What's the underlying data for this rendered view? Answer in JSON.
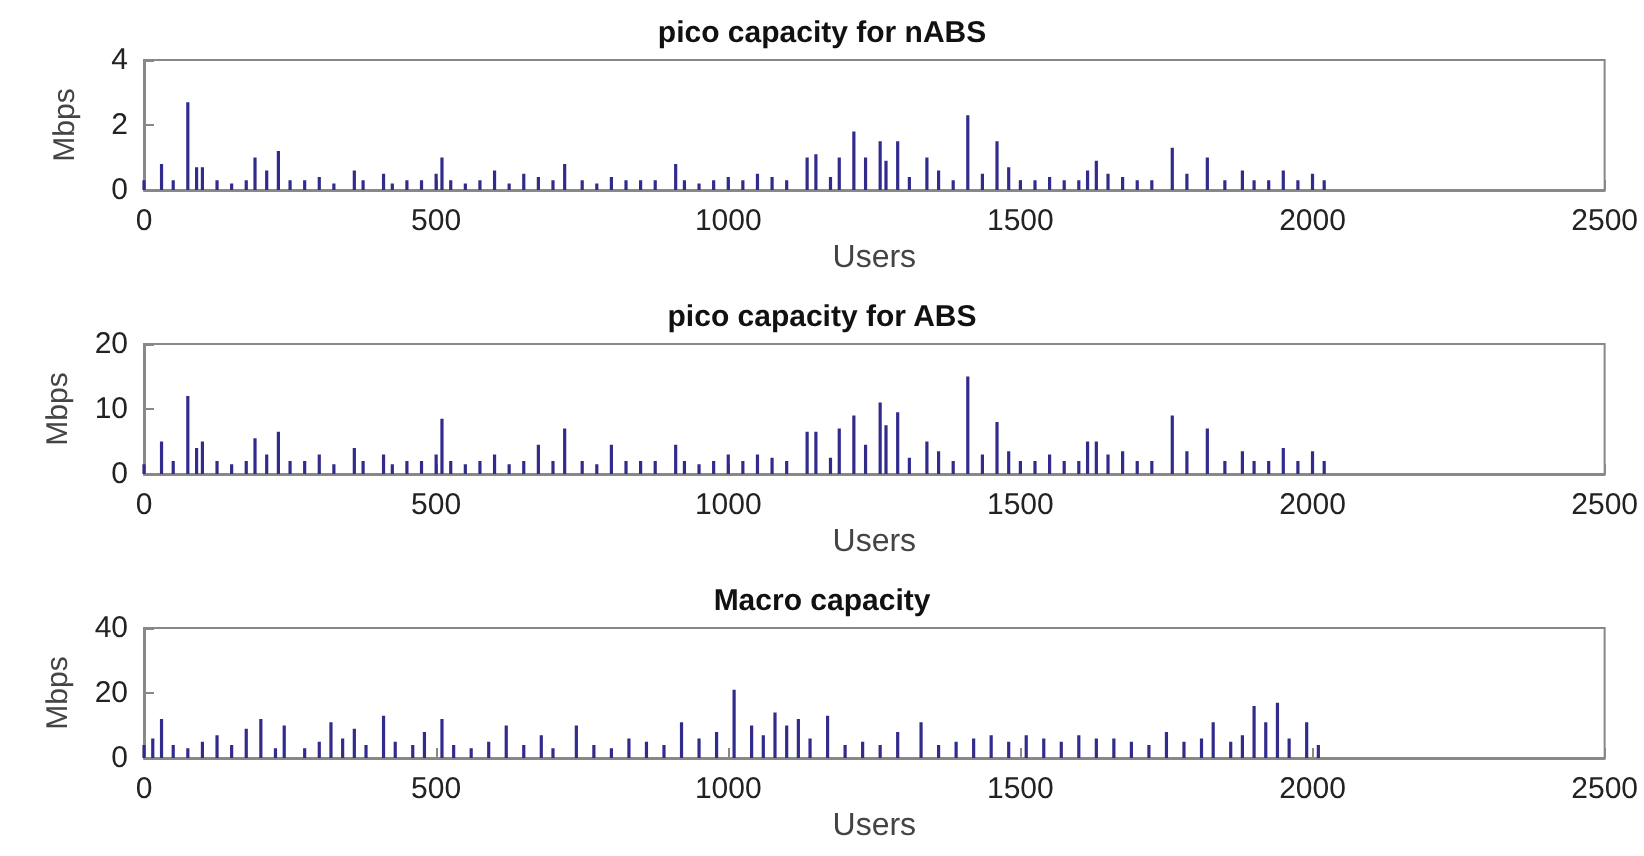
{
  "chart_data": [
    {
      "type": "bar",
      "title": "pico capacity for nABS",
      "xlabel": "Users",
      "ylabel": "Mbps",
      "xlim": [
        0,
        2500
      ],
      "xticks": [
        0,
        500,
        1000,
        1500,
        2000,
        2500
      ],
      "ylim": [
        0,
        4
      ],
      "yticks": [
        0,
        2,
        4
      ],
      "grid": false,
      "x": [
        0,
        30,
        50,
        75,
        90,
        100,
        125,
        150,
        175,
        190,
        210,
        230,
        250,
        275,
        300,
        325,
        360,
        375,
        410,
        425,
        450,
        475,
        500,
        510,
        525,
        550,
        575,
        600,
        625,
        650,
        675,
        700,
        720,
        750,
        775,
        800,
        825,
        850,
        875,
        910,
        925,
        950,
        975,
        1000,
        1025,
        1050,
        1075,
        1100,
        1135,
        1150,
        1175,
        1190,
        1215,
        1235,
        1260,
        1270,
        1290,
        1310,
        1340,
        1360,
        1385,
        1410,
        1435,
        1460,
        1480,
        1500,
        1525,
        1550,
        1575,
        1600,
        1615,
        1630,
        1650,
        1675,
        1700,
        1725,
        1760,
        1785,
        1820,
        1850,
        1880,
        1900,
        1925,
        1950,
        1975,
        2000,
        2020
      ],
      "series": [
        {
          "color": "#312c8c",
          "values": [
            0.3,
            0.8,
            0.3,
            2.7,
            0.7,
            0.7,
            0.3,
            0.2,
            0.3,
            1.0,
            0.6,
            1.2,
            0.3,
            0.3,
            0.4,
            0.2,
            0.6,
            0.3,
            0.5,
            0.2,
            0.3,
            0.3,
            0.5,
            1.0,
            0.3,
            0.2,
            0.3,
            0.6,
            0.2,
            0.5,
            0.4,
            0.3,
            0.8,
            0.3,
            0.2,
            0.4,
            0.3,
            0.3,
            0.3,
            0.8,
            0.3,
            0.2,
            0.3,
            0.4,
            0.3,
            0.5,
            0.4,
            0.3,
            1.0,
            1.1,
            0.4,
            1.0,
            1.8,
            1.0,
            1.5,
            0.9,
            1.5,
            0.4,
            1.0,
            0.6,
            0.3,
            2.3,
            0.5,
            1.5,
            0.7,
            0.3,
            0.3,
            0.4,
            0.3,
            0.3,
            0.6,
            0.9,
            0.5,
            0.4,
            0.3,
            0.3,
            1.3,
            0.5,
            1.0,
            0.3,
            0.6,
            0.3,
            0.3,
            0.6,
            0.3,
            0.5,
            0.3
          ]
        }
      ]
    },
    {
      "type": "bar",
      "title": "pico capacity for ABS",
      "xlabel": "Users",
      "ylabel": "Mbps",
      "xlim": [
        0,
        2500
      ],
      "xticks": [
        0,
        500,
        1000,
        1500,
        2000,
        2500
      ],
      "ylim": [
        0,
        20
      ],
      "yticks": [
        0,
        10,
        20
      ],
      "grid": false,
      "x": [
        0,
        30,
        50,
        75,
        90,
        100,
        125,
        150,
        175,
        190,
        210,
        230,
        250,
        275,
        300,
        325,
        360,
        375,
        410,
        425,
        450,
        475,
        500,
        510,
        525,
        550,
        575,
        600,
        625,
        650,
        675,
        700,
        720,
        750,
        775,
        800,
        825,
        850,
        875,
        910,
        925,
        950,
        975,
        1000,
        1025,
        1050,
        1075,
        1100,
        1135,
        1150,
        1175,
        1190,
        1215,
        1235,
        1260,
        1270,
        1290,
        1310,
        1340,
        1360,
        1385,
        1410,
        1435,
        1460,
        1480,
        1500,
        1525,
        1550,
        1575,
        1600,
        1615,
        1630,
        1650,
        1675,
        1700,
        1725,
        1760,
        1785,
        1820,
        1850,
        1880,
        1900,
        1925,
        1950,
        1975,
        2000,
        2020
      ],
      "series": [
        {
          "color": "#312c8c",
          "values": [
            1.5,
            5,
            2,
            12,
            4,
            5,
            2,
            1.5,
            2,
            5.5,
            3,
            6.5,
            2,
            2,
            3,
            1.5,
            4,
            2,
            3,
            1.5,
            2,
            2,
            3,
            8.5,
            2,
            1.5,
            2,
            3,
            1.5,
            2,
            4.5,
            2,
            7,
            2,
            1.5,
            4.5,
            2,
            2,
            2,
            4.5,
            2,
            1.5,
            2,
            3,
            2,
            3,
            2.5,
            2,
            6.5,
            6.5,
            2.5,
            7,
            9,
            4.5,
            11,
            7.5,
            9.5,
            2.5,
            5,
            3.5,
            2,
            15,
            3,
            8,
            3.5,
            2,
            2,
            3,
            2,
            2,
            5,
            5,
            3,
            3.5,
            2,
            2,
            9,
            3.5,
            7,
            2,
            3.5,
            2,
            2,
            4,
            2,
            3.5,
            2
          ]
        }
      ]
    },
    {
      "type": "bar",
      "title": "Macro capacity",
      "xlabel": "Users",
      "ylabel": "Mbps",
      "xlim": [
        0,
        2500
      ],
      "xticks": [
        0,
        500,
        1000,
        1500,
        2000,
        2500
      ],
      "ylim": [
        0,
        40
      ],
      "yticks": [
        0,
        20,
        40
      ],
      "grid": false,
      "x": [
        0,
        15,
        30,
        50,
        75,
        100,
        125,
        150,
        175,
        200,
        225,
        240,
        275,
        300,
        320,
        340,
        360,
        380,
        410,
        430,
        460,
        480,
        510,
        530,
        560,
        590,
        620,
        650,
        680,
        700,
        740,
        770,
        800,
        830,
        860,
        890,
        920,
        950,
        980,
        1010,
        1040,
        1060,
        1080,
        1100,
        1120,
        1140,
        1170,
        1200,
        1230,
        1260,
        1290,
        1330,
        1360,
        1390,
        1420,
        1450,
        1480,
        1510,
        1540,
        1570,
        1600,
        1630,
        1660,
        1690,
        1720,
        1750,
        1780,
        1810,
        1830,
        1860,
        1880,
        1900,
        1920,
        1940,
        1960,
        1990,
        2010
      ],
      "series": [
        {
          "color": "#312c8c",
          "values": [
            4,
            6,
            12,
            4,
            3,
            5,
            7,
            4,
            9,
            12,
            3,
            10,
            3,
            5,
            11,
            6,
            9,
            4,
            13,
            5,
            4,
            8,
            12,
            4,
            3,
            5,
            10,
            4,
            7,
            3,
            10,
            4,
            3,
            6,
            5,
            4,
            11,
            6,
            8,
            21,
            10,
            7,
            14,
            10,
            12,
            6,
            13,
            4,
            5,
            4,
            8,
            11,
            4,
            5,
            6,
            7,
            5,
            7,
            6,
            5,
            7,
            6,
            6,
            5,
            4,
            8,
            5,
            6,
            11,
            5,
            7,
            16,
            11,
            17,
            6,
            11,
            4
          ]
        }
      ]
    }
  ]
}
